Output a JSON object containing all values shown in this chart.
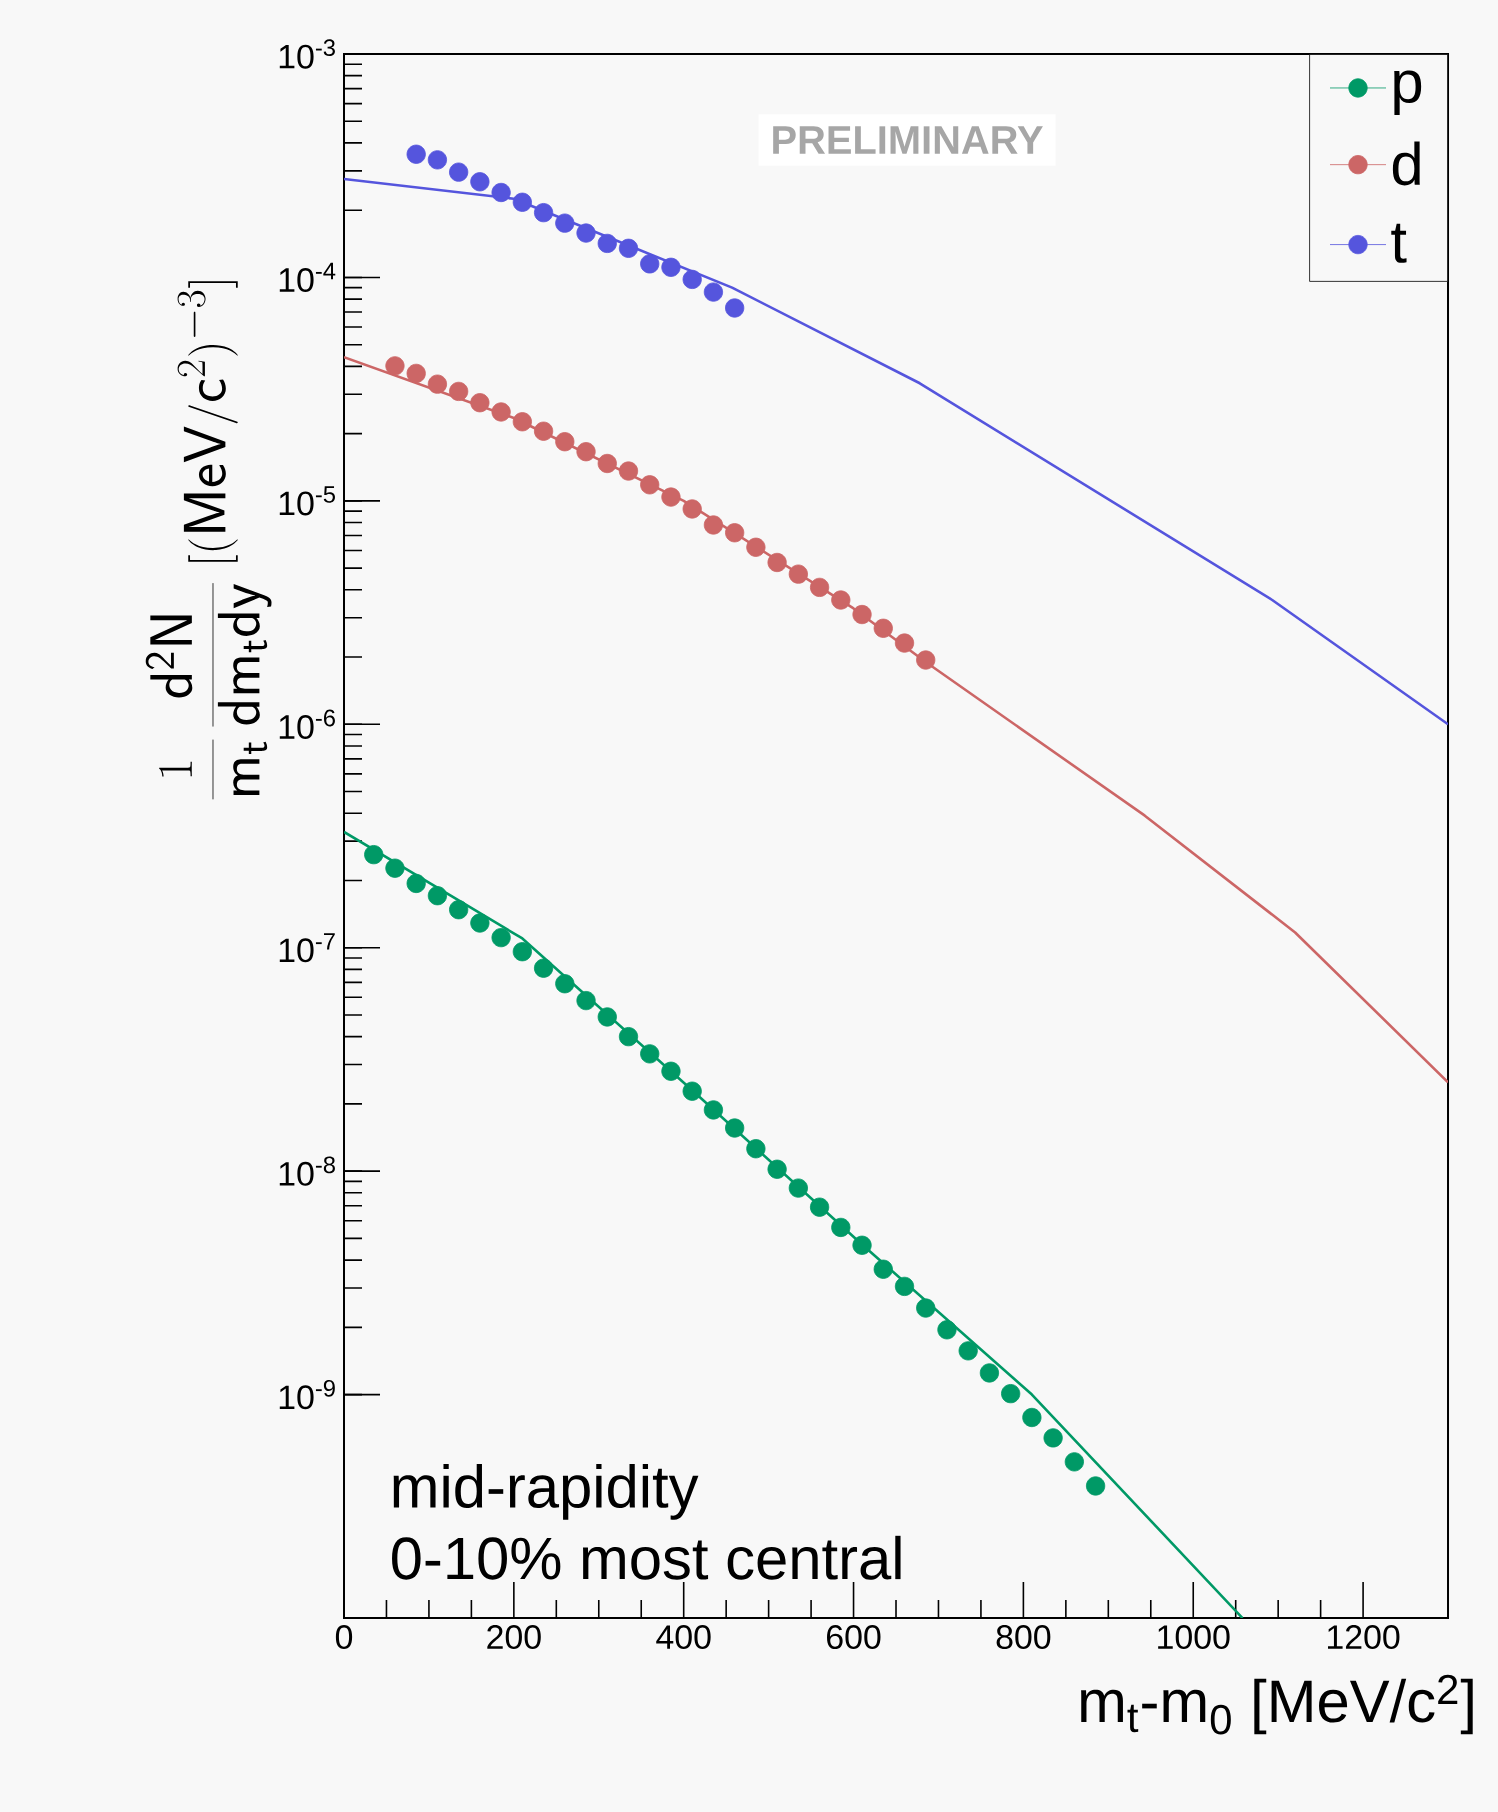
{
  "chart_data": {
    "type": "scatter",
    "xlabel": "m$_{t}$-m$_{0}$ [MeV/c$^{2}$]",
    "ylabel": "\\frac{1}{\\mathsf{m_t}}\\,\\frac{\\mathsf{d^2N}}{\\mathsf{dm_t dy}}\\;[(\\mathsf{MeV}/\\mathsf{c}^2)^{-3}]",
    "log": "y",
    "xlim": [
      0,
      1300
    ],
    "ylim": [
      1e-10,
      0.001
    ],
    "xticks": [
      0,
      200,
      400,
      600,
      800,
      1000,
      1200
    ],
    "yticks": [
      {
        "value": 1e-09,
        "label": "10$^{-9}$"
      },
      {
        "value": 1e-08,
        "label": "10$^{-8}$"
      },
      {
        "value": 1e-07,
        "label": "10$^{-7}$"
      },
      {
        "value": 1e-06,
        "label": "10$^{-6}$"
      },
      {
        "value": 1e-05,
        "label": "10$^{-5}$"
      },
      {
        "value": 0.0001,
        "label": "10$^{-4}$"
      },
      {
        "value": 0.001,
        "label": "10$^{-3}$"
      }
    ],
    "legend": "top right",
    "marker": "circle",
    "annotations": [
      "PRELIMINARY",
      "mid-rapidity",
      "0-10% most central"
    ],
    "series": [
      {
        "name": "p",
        "color": "#009966",
        "x": [
          35,
          60,
          85,
          110,
          135,
          160,
          185,
          210,
          235,
          260,
          285,
          310,
          335,
          360,
          385,
          410,
          435,
          460,
          485,
          510,
          535,
          560,
          585,
          610,
          635,
          660,
          685,
          710,
          735,
          760,
          785,
          810,
          835,
          860,
          885
        ],
        "values": [
          2.61e-07,
          2.27e-07,
          1.94e-07,
          1.71e-07,
          1.48e-07,
          1.29e-07,
          1.11e-07,
          9.6e-08,
          8.1e-08,
          6.9e-08,
          5.8e-08,
          4.9e-08,
          4e-08,
          3.35e-08,
          2.8e-08,
          2.28e-08,
          1.88e-08,
          1.56e-08,
          1.26e-08,
          1.02e-08,
          8.4e-09,
          6.9e-09,
          5.6e-09,
          4.66e-09,
          3.64e-09,
          3.05e-09,
          2.44e-09,
          1.95e-09,
          1.57e-09,
          1.25e-09,
          1.01e-09,
          7.9e-10,
          6.4e-10,
          5e-10,
          3.9e-10
        ]
      },
      {
        "name": "d",
        "color": "#cc6666",
        "x": [
          60,
          85,
          110,
          135,
          160,
          185,
          210,
          235,
          260,
          285,
          310,
          335,
          360,
          385,
          410,
          435,
          460,
          485,
          510,
          535,
          560,
          585,
          610,
          635,
          660,
          685
        ],
        "values": [
          4.02e-05,
          3.72e-05,
          3.33e-05,
          3.09e-05,
          2.75e-05,
          2.5e-05,
          2.26e-05,
          2.05e-05,
          1.84e-05,
          1.66e-05,
          1.47e-05,
          1.36e-05,
          1.18e-05,
          1.04e-05,
          9.2e-06,
          7.8e-06,
          7.2e-06,
          6.2e-06,
          5.3e-06,
          4.7e-06,
          4.1e-06,
          3.6e-06,
          3.1e-06,
          2.69e-06,
          2.31e-06,
          1.94e-06
        ]
      },
      {
        "name": "t",
        "color": "#5555dd",
        "x": [
          85,
          110,
          135,
          160,
          185,
          210,
          235,
          260,
          285,
          310,
          335,
          360,
          385,
          410,
          435,
          460
        ],
        "values": [
          0.000356,
          0.000336,
          0.000296,
          0.000268,
          0.00024,
          0.000217,
          0.000195,
          0.000175,
          0.000158,
          0.000142,
          0.000135,
          0.000115,
          0.000111,
          9.8e-05,
          8.6e-05,
          7.3e-05
        ]
      },
      {
        "type": "line",
        "marker": "none",
        "color": "#009966",
        "x": [
          0,
          210,
          410,
          610,
          810,
          1058
        ],
        "values": [
          3.3e-07,
          1.1e-07,
          2.3e-08,
          4.7e-09,
          1e-09,
          1e-10
        ]
      },
      {
        "type": "line",
        "marker": "none",
        "color": "#cc6666",
        "x": [
          0,
          200,
          400,
          600,
          685,
          943,
          1120,
          1300
        ],
        "values": [
          4.4e-05,
          2.35e-05,
          1e-05,
          3.3e-06,
          1.9e-06,
          3.9e-07,
          1.17e-07,
          2.5e-08
        ]
      },
      {
        "type": "line",
        "marker": "none",
        "color": "#5555dd",
        "x": [
          0,
          200,
          457,
          678,
          1093,
          1300
        ],
        "values": [
          0.000276,
          0.000225,
          9e-05,
          3.36e-05,
          3.6e-06,
          1e-06
        ]
      }
    ]
  }
}
